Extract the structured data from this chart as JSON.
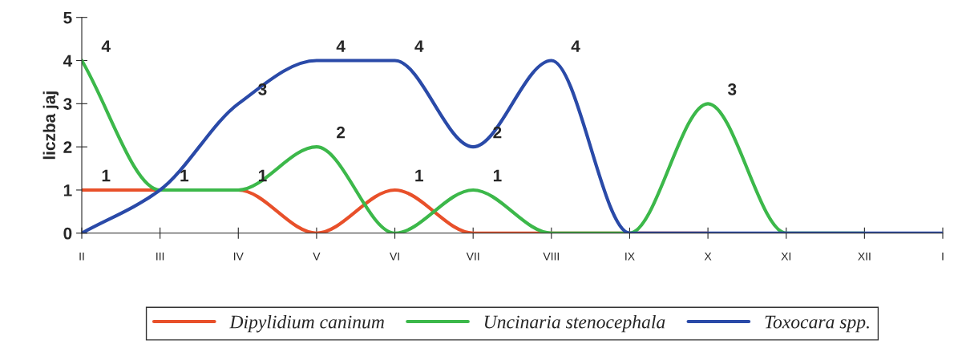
{
  "chart_data": {
    "type": "line",
    "ylabel": "liczba jaj",
    "categories": [
      "II",
      "III",
      "IV",
      "V",
      "VI",
      "VII",
      "VIII",
      "IX",
      "X",
      "XI",
      "XII",
      "I"
    ],
    "ylim": [
      0,
      5
    ],
    "yticks": [
      0,
      1,
      2,
      3,
      4,
      5
    ],
    "grid": false,
    "legend": "bottom",
    "marker": "none",
    "line_style": "solid",
    "series": [
      {
        "name": "Dipylidium caninum",
        "color": "#e8502a",
        "values": [
          1,
          1,
          1,
          0,
          1,
          0,
          0,
          0,
          0,
          null,
          null,
          null
        ],
        "value_labels": [
          "1",
          "1",
          "1",
          null,
          "1",
          null,
          null,
          null,
          null,
          null,
          null,
          null
        ]
      },
      {
        "name": "Uncinaria stenocephala",
        "color": "#3cb84a",
        "values": [
          4,
          1,
          1,
          2,
          0,
          1,
          0,
          0,
          3,
          0,
          0,
          null
        ],
        "value_labels": [
          "4",
          null,
          null,
          "2",
          null,
          "1",
          null,
          null,
          "3",
          null,
          null,
          null
        ]
      },
      {
        "name": "Toxocara spp.",
        "color": "#2a4aa8",
        "values": [
          0,
          1,
          3,
          4,
          4,
          2,
          4,
          0,
          0,
          0,
          0,
          0
        ],
        "value_labels": [
          null,
          null,
          "3",
          "4",
          "4",
          "2",
          "4",
          null,
          null,
          null,
          null,
          null
        ]
      }
    ]
  }
}
